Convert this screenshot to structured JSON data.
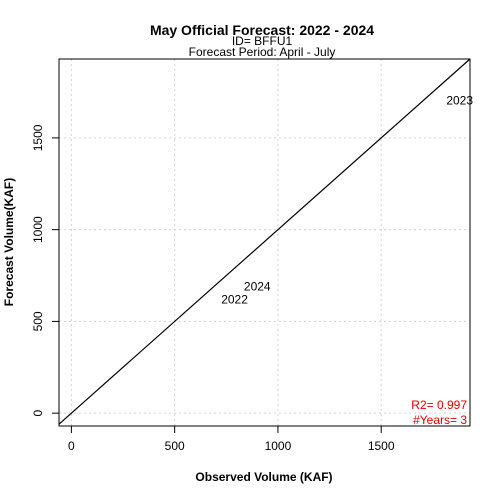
{
  "chart_data": {
    "type": "scatter",
    "title": "May Official Forecast: 2022 - 2024",
    "subtitle_id": "ID= BFFU1",
    "subtitle_period": "Forecast Period:  April - July",
    "xlabel": "Observed Volume (KAF)",
    "ylabel": "Forecast Volume(KAF)",
    "xlim": [
      -60,
      1930
    ],
    "ylim": [
      -70,
      1930
    ],
    "xticks": [
      0,
      500,
      1000,
      1500
    ],
    "yticks": [
      0,
      500,
      1000,
      1500
    ],
    "grid": true,
    "reference_line": "1:1",
    "points": [
      {
        "label": "2022",
        "x": 790,
        "y": 615
      },
      {
        "label": "2024",
        "x": 900,
        "y": 685
      },
      {
        "label": "2023",
        "x": 1880,
        "y": 1700
      }
    ],
    "stats": {
      "r2": "R2=  0.997",
      "years": "#Years=  3"
    }
  }
}
